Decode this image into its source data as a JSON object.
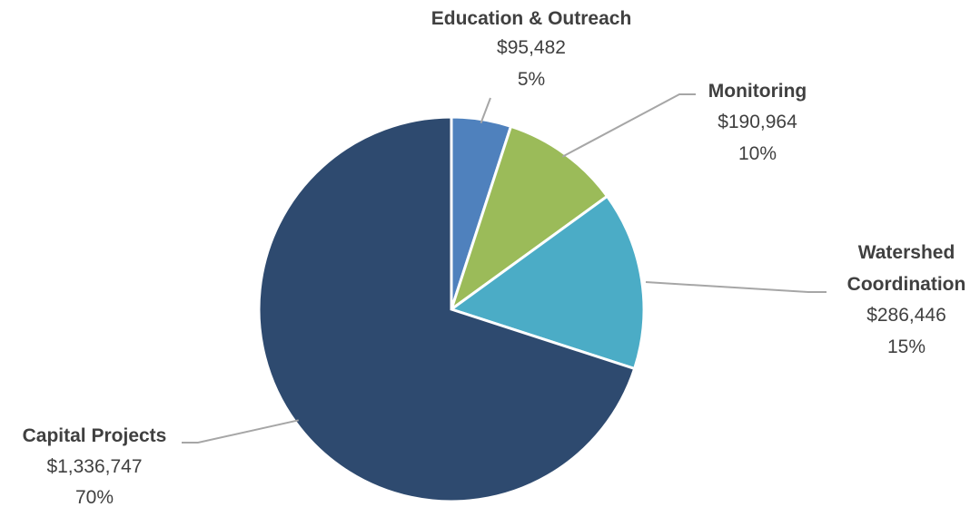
{
  "chart_data": {
    "type": "pie",
    "title": "",
    "legend": "none",
    "slices": [
      {
        "label": "Education & Outreach",
        "value": 95482,
        "value_label": "$95,482",
        "percent_label": "5%",
        "color": "#4f81bd"
      },
      {
        "label": "Monitoring",
        "value": 190964,
        "value_label": "$190,964",
        "percent_label": "10%",
        "color": "#9bbb59"
      },
      {
        "label": "Watershed Coordination",
        "label_lines": [
          "Watershed",
          "Coordination"
        ],
        "value": 286446,
        "value_label": "$286,446",
        "percent_label": "15%",
        "color": "#4bacc6"
      },
      {
        "label": "Capital Projects",
        "value": 1336747,
        "value_label": "$1,336,747",
        "percent_label": "70%",
        "color": "#2e4a6f"
      }
    ]
  }
}
